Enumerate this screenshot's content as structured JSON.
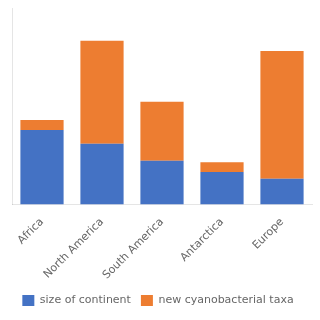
{
  "chart_data": {
    "type": "bar",
    "stacked": true,
    "categories": [
      "Africa",
      "North America",
      "South America",
      "Antarctica",
      "Europe"
    ],
    "series": [
      {
        "name": "size of continent",
        "color": "#4472C4",
        "values": [
          30.37,
          24.71,
          17.84,
          13.2,
          10.53
        ]
      },
      {
        "name": "new cyanobacterial taxa",
        "color": "#ED7D31",
        "values": [
          4.0,
          42.0,
          24.0,
          4.0,
          52.0
        ]
      }
    ],
    "ylim": [
      0,
      80
    ],
    "grid": false,
    "legend": "bottom",
    "tick_labels": "x"
  }
}
